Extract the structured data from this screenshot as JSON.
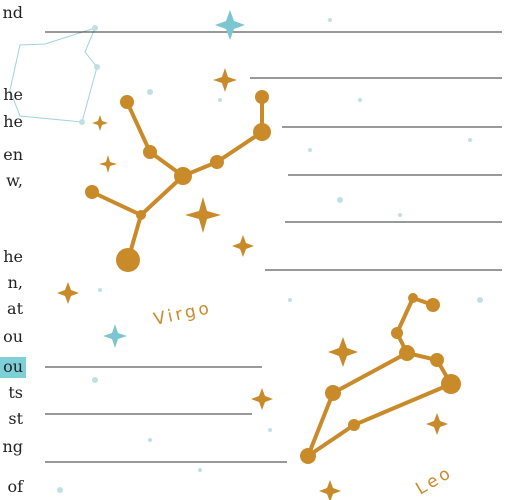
{
  "page": {
    "fragments": [
      "nd",
      "he",
      "he",
      "en",
      "w,",
      "he",
      "n,",
      "at",
      "ou",
      "ou",
      "ts",
      "st",
      "ng",
      "of"
    ],
    "highlighted_fragment": 9,
    "labels": {
      "virgo": "Virgo",
      "leo": "Leo"
    }
  }
}
